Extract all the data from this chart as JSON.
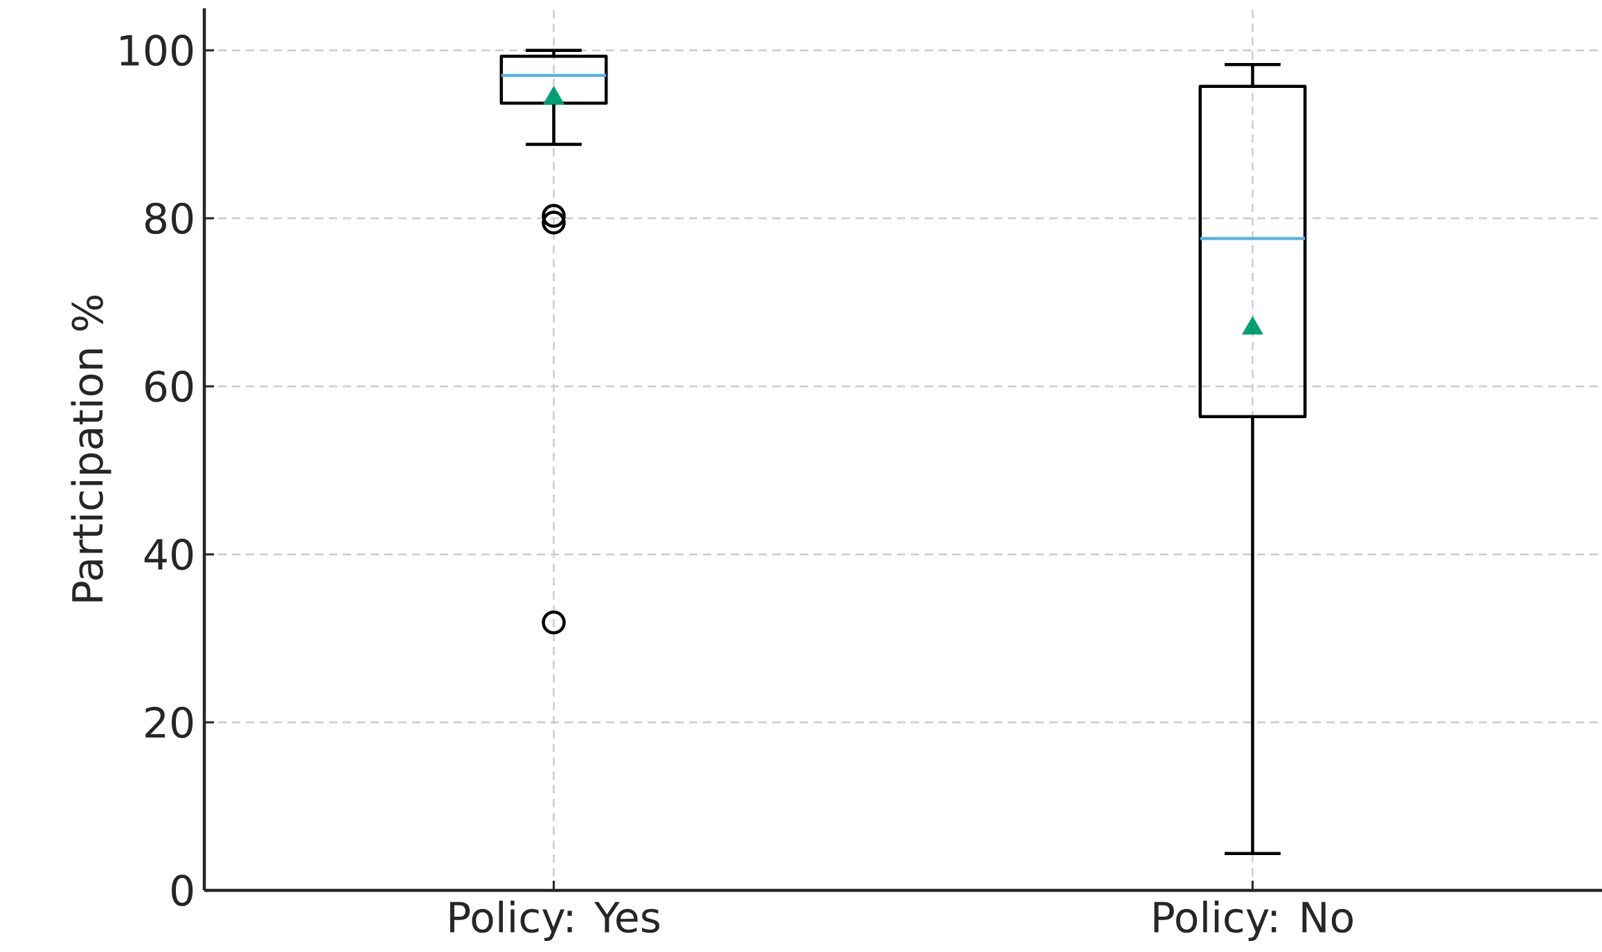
{
  "chart_data": {
    "type": "box",
    "ylabel": "Participation %",
    "categories": [
      "Policy: Yes",
      "Policy: No"
    ],
    "boxes": [
      {
        "low": 88.8,
        "q1": 93.7,
        "median": 97.0,
        "q3": 99.3,
        "high": 100.0,
        "mean": 94.3,
        "outliers": [
          80.3,
          79.5,
          31.9
        ]
      },
      {
        "low": 4.4,
        "q1": 56.4,
        "median": 77.6,
        "q3": 95.7,
        "high": 98.3,
        "mean": 66.9
      }
    ],
    "ylim": [
      0,
      105
    ],
    "yticks": [
      0,
      20,
      40,
      60,
      80,
      100
    ],
    "grid": true
  }
}
